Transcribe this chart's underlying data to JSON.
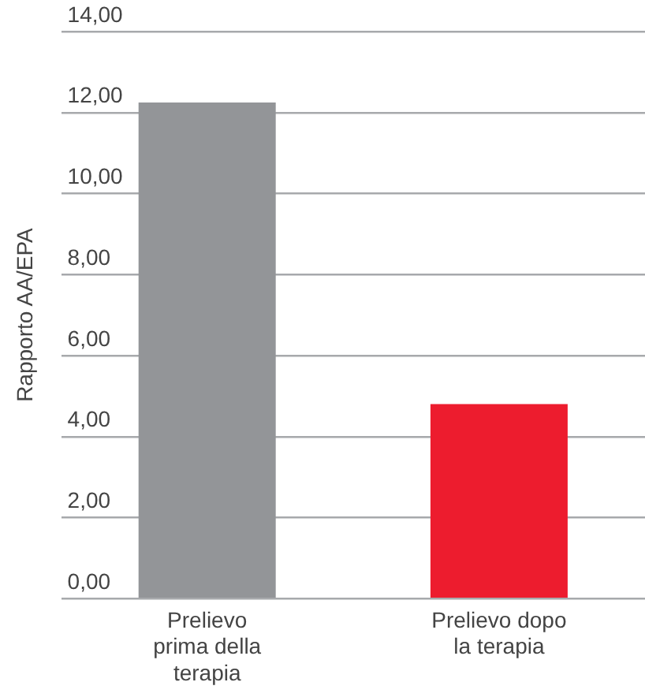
{
  "chart_data": {
    "type": "bar",
    "ylabel": "Rapporto AA/EPA",
    "categories": [
      "Prelievo prima della terapia",
      "Prelievo dopo la terapia"
    ],
    "values": [
      12.25,
      4.8
    ],
    "colors": [
      "#939598",
      "#ed1c2e"
    ],
    "ylim": [
      0,
      14
    ],
    "yticks": [
      {
        "value": 0,
        "label": "0,00"
      },
      {
        "value": 2,
        "label": "2,00"
      },
      {
        "value": 4,
        "label": "4,00"
      },
      {
        "value": 6,
        "label": "6,00"
      },
      {
        "value": 8,
        "label": "8,00"
      },
      {
        "value": 10,
        "label": "10,00"
      },
      {
        "value": 12,
        "label": "12,00"
      },
      {
        "value": 14,
        "label": "14,00"
      }
    ],
    "grid": "y",
    "legend": false
  }
}
